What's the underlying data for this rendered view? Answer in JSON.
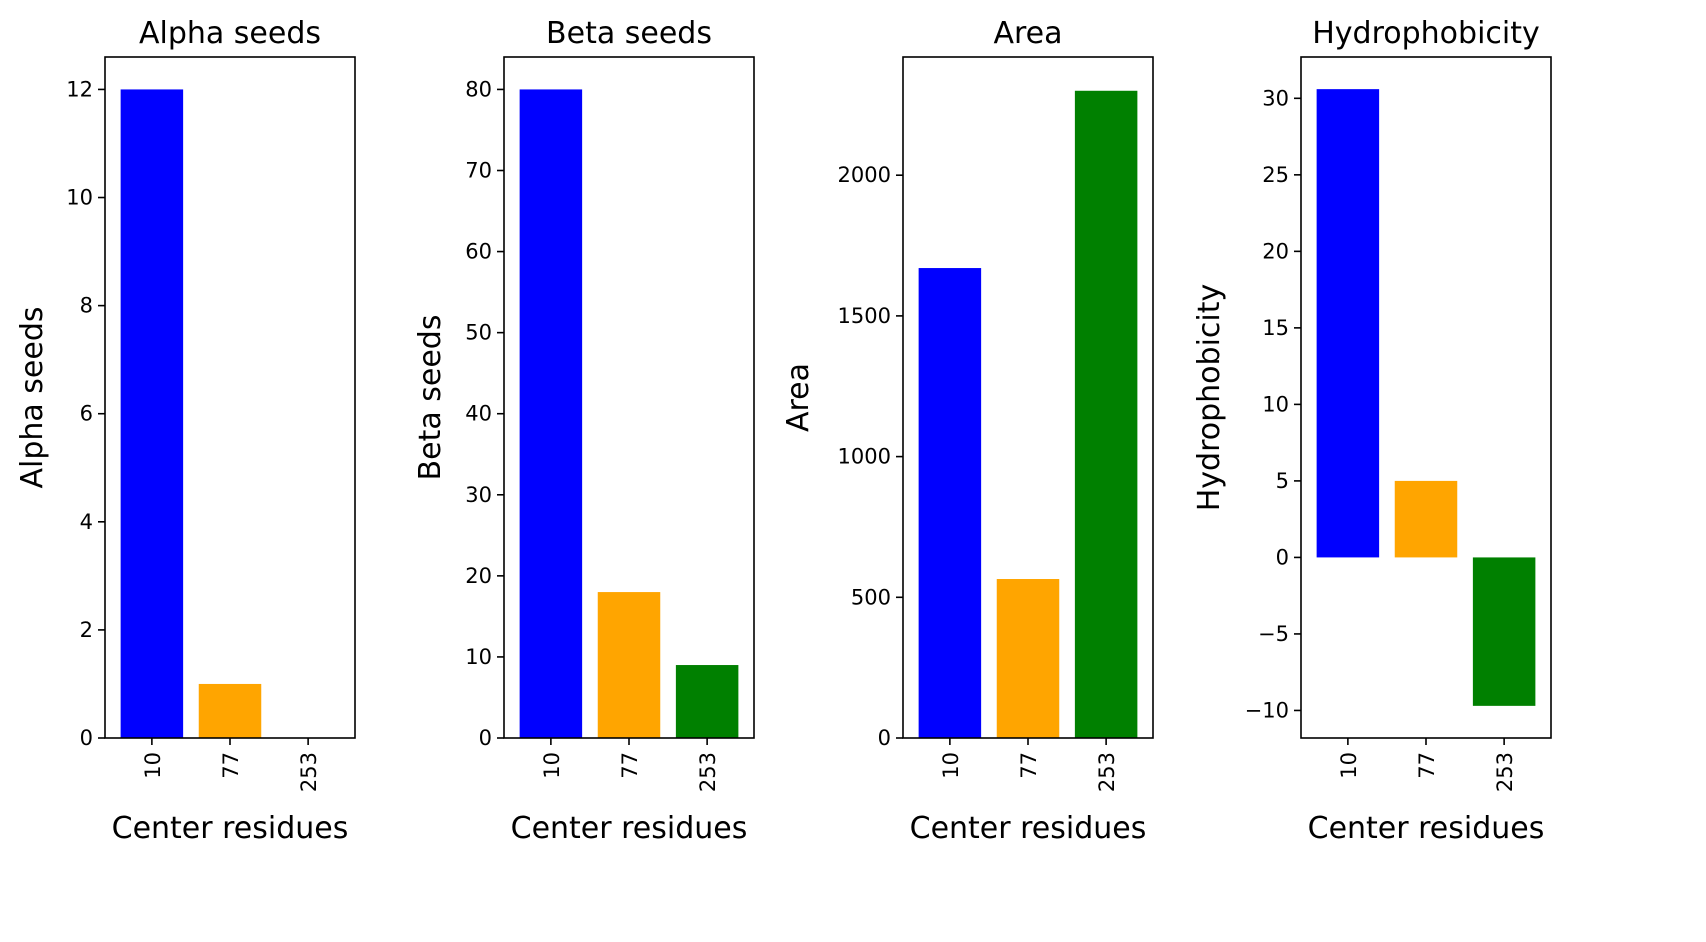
{
  "figure": {
    "colors": [
      "#0000ff",
      "#ffa500",
      "#008000"
    ]
  },
  "chart_data": [
    {
      "type": "bar",
      "title": "Alpha seeds",
      "xlabel": "Center residues",
      "ylabel": "Alpha seeds",
      "categories": [
        "10",
        "77",
        "253"
      ],
      "values": [
        12,
        1,
        0
      ],
      "ylim": [
        0,
        12.6
      ],
      "yticks": [
        0,
        2,
        4,
        6,
        8,
        10,
        12
      ],
      "ytick_labels": [
        "0",
        "2",
        "4",
        "6",
        "8",
        "10",
        "12"
      ],
      "grid": false,
      "legend": "none"
    },
    {
      "type": "bar",
      "title": "Beta seeds",
      "xlabel": "Center residues",
      "ylabel": "Beta seeds",
      "categories": [
        "10",
        "77",
        "253"
      ],
      "values": [
        80,
        18,
        9
      ],
      "ylim": [
        0,
        84
      ],
      "yticks": [
        0,
        10,
        20,
        30,
        40,
        50,
        60,
        70,
        80
      ],
      "ytick_labels": [
        "0",
        "10",
        "20",
        "30",
        "40",
        "50",
        "60",
        "70",
        "80"
      ],
      "grid": false,
      "legend": "none"
    },
    {
      "type": "bar",
      "title": "Area",
      "xlabel": "Center residues",
      "ylabel": "Area",
      "categories": [
        "10",
        "77",
        "253"
      ],
      "values": [
        1670,
        565,
        2300
      ],
      "ylim": [
        0,
        2420
      ],
      "yticks": [
        0,
        500,
        1000,
        1500,
        2000
      ],
      "ytick_labels": [
        "0",
        "500",
        "1000",
        "1500",
        "2000"
      ],
      "grid": false,
      "legend": "none"
    },
    {
      "type": "bar",
      "title": "Hydrophobicity",
      "xlabel": "Center residues",
      "ylabel": "Hydrophobicity",
      "categories": [
        "10",
        "77",
        "253"
      ],
      "values": [
        30.6,
        5.0,
        -9.7
      ],
      "ylim": [
        -11.8,
        32.7
      ],
      "yticks": [
        -10,
        -5,
        0,
        5,
        10,
        15,
        20,
        25,
        30
      ],
      "ytick_labels": [
        "−10",
        "−5",
        "0",
        "5",
        "10",
        "15",
        "20",
        "25",
        "30"
      ],
      "grid": false,
      "legend": "none"
    }
  ]
}
